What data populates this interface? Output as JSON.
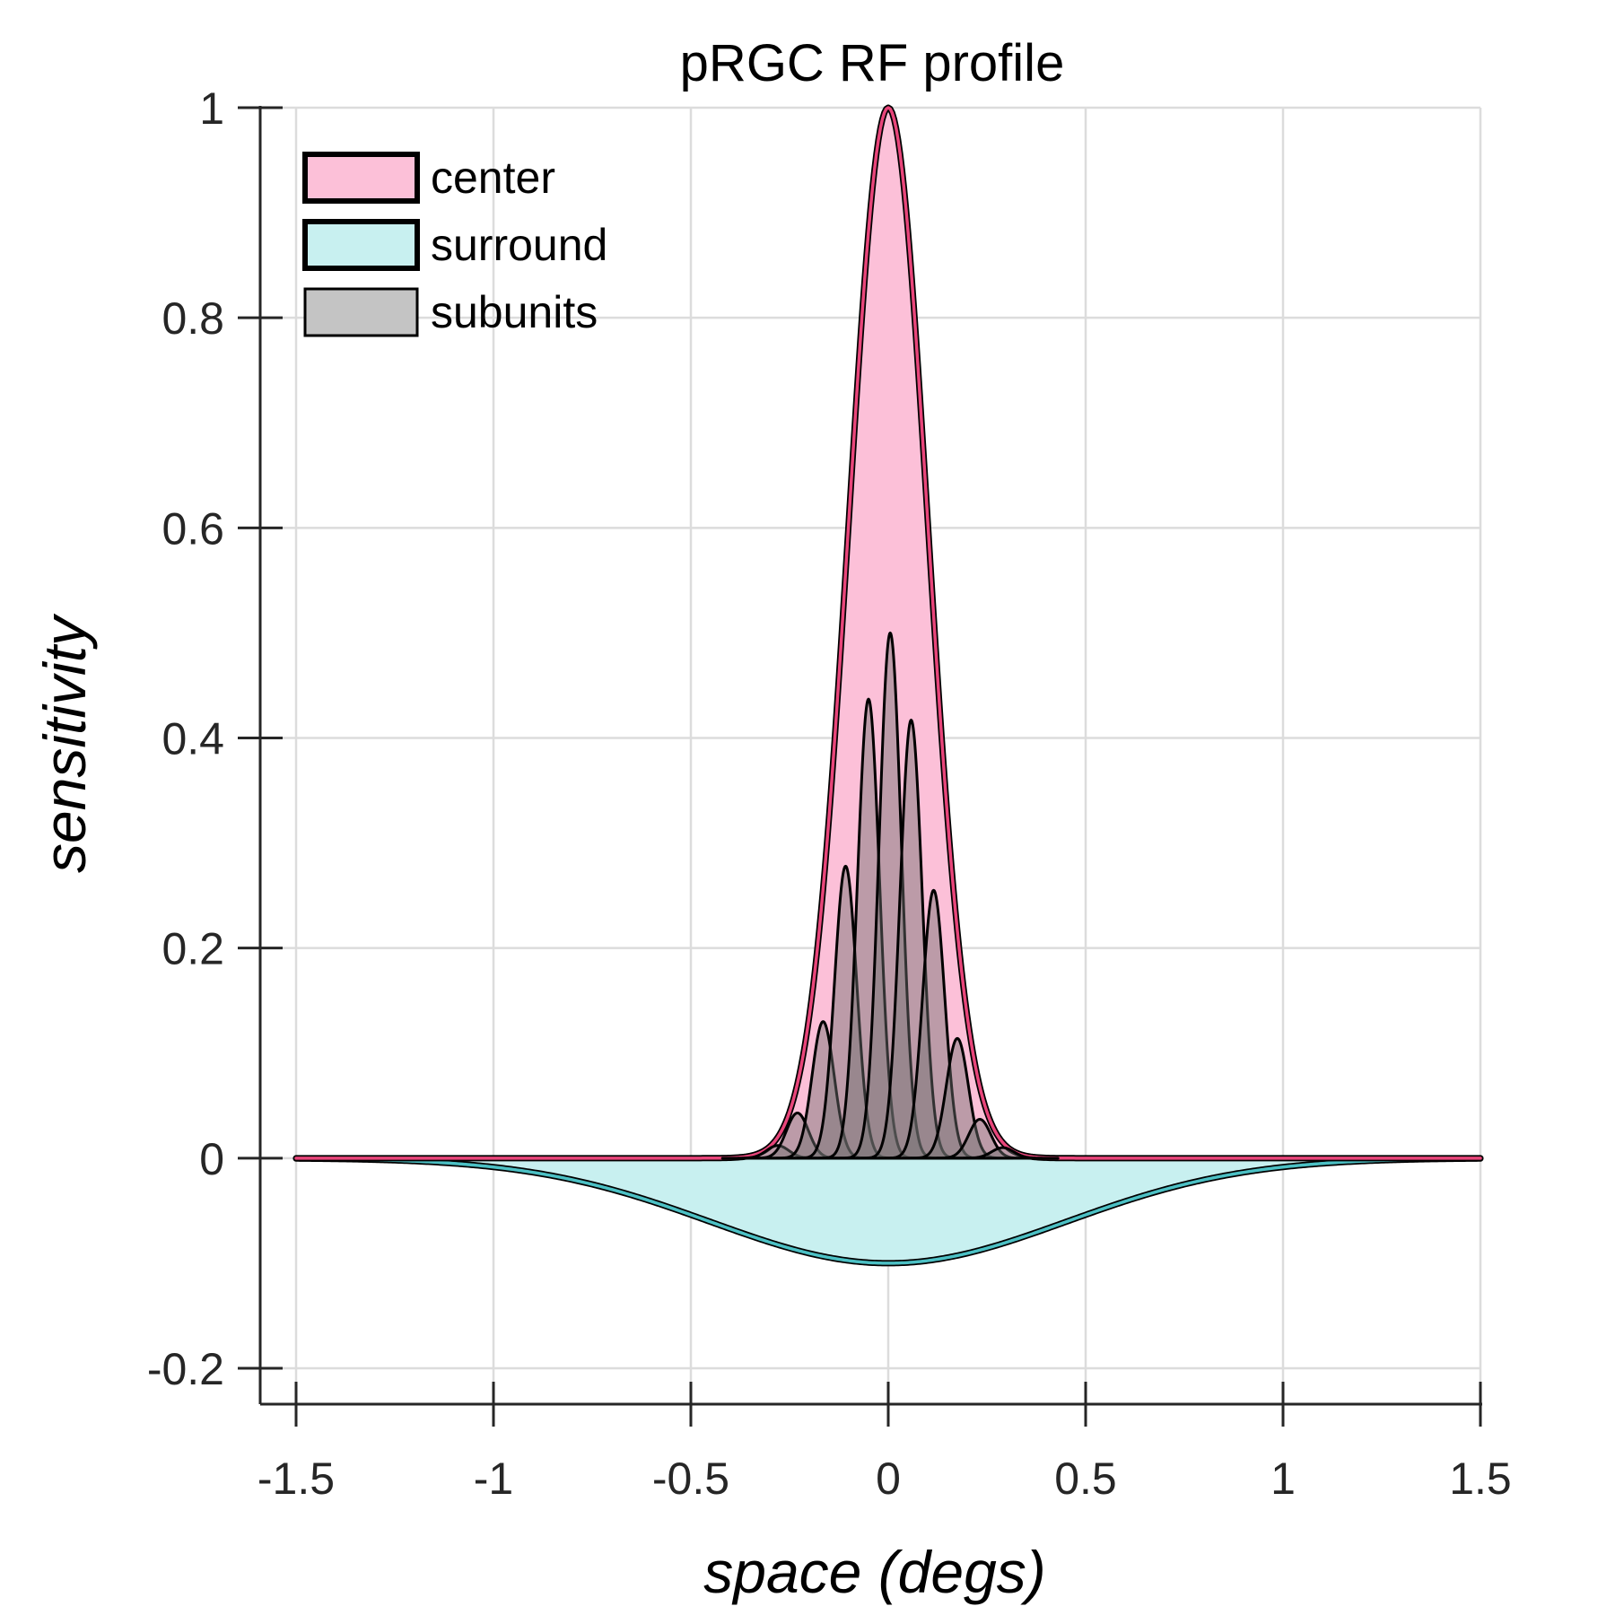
{
  "chart_data": {
    "type": "area",
    "title": "pRGC RF profile",
    "xlabel": "space (degs)",
    "ylabel": "sensitivity",
    "xlim": [
      -1.5,
      1.5
    ],
    "ylim": [
      -0.2,
      1
    ],
    "xticks": [
      -1.5,
      -1,
      -0.5,
      0,
      0.5,
      1,
      1.5
    ],
    "xtick_labels": [
      "-1.5",
      "-1",
      "-0.5",
      "0",
      "0.5",
      "1",
      "1.5"
    ],
    "yticks": [
      -0.2,
      0,
      0.2,
      0.4,
      0.6,
      0.8,
      1
    ],
    "ytick_labels": [
      "-0.2",
      "0",
      "0.2",
      "0.4",
      "0.6",
      "0.8",
      "1"
    ],
    "grid": true,
    "legend_position": "top-left",
    "legend": [
      {
        "label": "center",
        "color": "#fcc0d8",
        "edge": "#000000"
      },
      {
        "label": "surround",
        "color": "#c8f0f0",
        "edge": "#000000"
      },
      {
        "label": "subunits",
        "color": "#c4c4c4",
        "edge": "#000000"
      }
    ],
    "series": [
      {
        "name": "center",
        "kind": "gaussian",
        "amplitude": 1.0,
        "mean": 0.0,
        "sigma": 0.1,
        "fill": "#fcc0d8",
        "line": "#e8457a"
      },
      {
        "name": "surround",
        "kind": "gaussian",
        "amplitude": -0.1,
        "mean": 0.0,
        "sigma": 0.45,
        "fill": "#c8f0f0",
        "line": "#4cc0c4"
      },
      {
        "name": "subunits",
        "kind": "gaussians",
        "sigma": 0.028,
        "fill": "#6e6e6e",
        "fill_opacity": 0.45,
        "line": "#000000",
        "peaks": [
          {
            "x": -0.28,
            "y": 0.012
          },
          {
            "x": -0.23,
            "y": 0.043
          },
          {
            "x": -0.165,
            "y": 0.13
          },
          {
            "x": -0.108,
            "y": 0.278
          },
          {
            "x": -0.05,
            "y": 0.437
          },
          {
            "x": 0.005,
            "y": 0.5
          },
          {
            "x": 0.058,
            "y": 0.417
          },
          {
            "x": 0.115,
            "y": 0.255
          },
          {
            "x": 0.175,
            "y": 0.114
          },
          {
            "x": 0.232,
            "y": 0.037
          },
          {
            "x": 0.29,
            "y": 0.01
          }
        ]
      }
    ]
  }
}
